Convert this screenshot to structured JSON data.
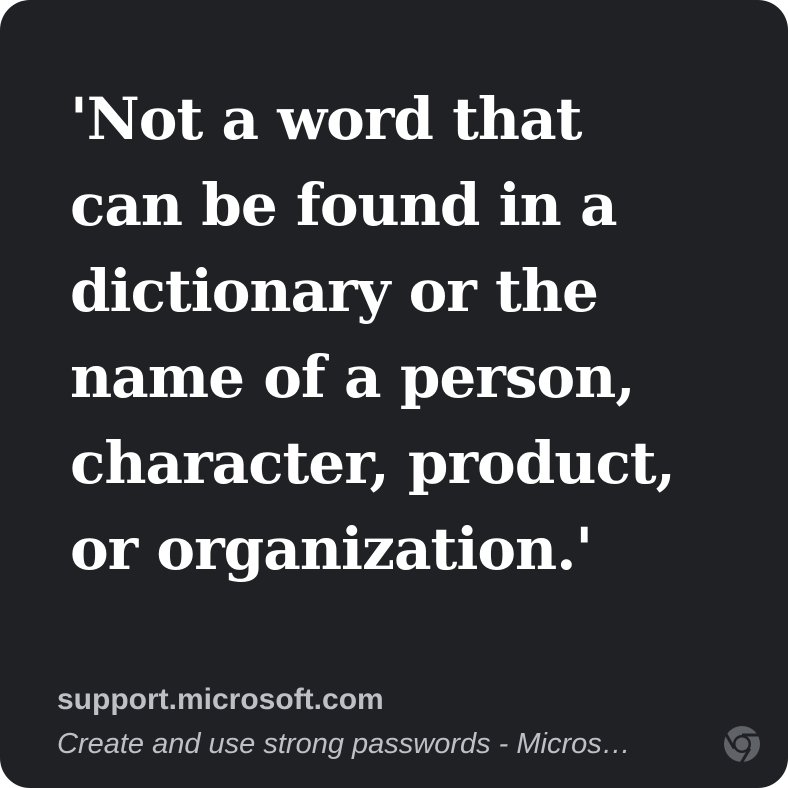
{
  "quote": {
    "text": "'Not a word that\ncan be found in a\ndictionary or the\nname of a person,\ncharacter, product,\nor organization.'"
  },
  "source": {
    "domain": "support.microsoft.com",
    "page_title": "Create and use strong passwords - Micros…"
  },
  "icons": {
    "browser": "chrome-icon"
  },
  "colors": {
    "card_background": "#202124",
    "quote_text": "#ffffff",
    "meta_text": "#bdc1c6"
  }
}
